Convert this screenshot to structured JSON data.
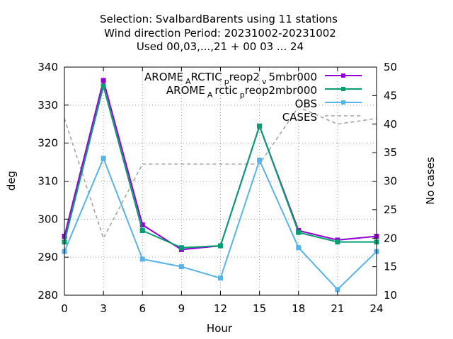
{
  "chart_data": {
    "type": "line",
    "title_lines": [
      "Selection: SvalbardBarents using    11 stations",
      "Wind direction   Period: 20231002-20231002",
      "Used  00,03,...,21  + 00 03 ... 24"
    ],
    "xlabel": "Hour",
    "ylabel": "deg",
    "y2label": "No cases",
    "x": [
      0,
      3,
      6,
      9,
      12,
      15,
      18,
      21,
      24
    ],
    "xlim": [
      0,
      24
    ],
    "ylim": [
      280,
      340
    ],
    "y2lim": [
      10,
      50
    ],
    "xticks": [
      "0",
      "3",
      "6",
      "9",
      "12",
      "15",
      "18",
      "21",
      "24"
    ],
    "yticks": [
      "280",
      "290",
      "300",
      "310",
      "320",
      "330",
      "340"
    ],
    "y2ticks": [
      "10",
      "15",
      "20",
      "25",
      "30",
      "35",
      "40",
      "45",
      "50"
    ],
    "grid": true,
    "legend_position": "top-right",
    "series": [
      {
        "name": "AROME_ARCTIC_preop2_v5mbr000",
        "name_parts": {
          "a": "AROME",
          "b": "A",
          "c": "RCTIC",
          "d": "p",
          "e": "reop2",
          "f": "v",
          "g": "5mbr000"
        },
        "color": "#9400d3",
        "axis": "y",
        "marker": "filled-square",
        "values": [
          295.5,
          336.5,
          298.5,
          292,
          293,
          324.5,
          297,
          294.5,
          295.5
        ]
      },
      {
        "name": "AROME_Arctic_preop2mbr000",
        "name_parts": {
          "a": "AROME",
          "b": "A",
          "c": "rctic",
          "d": "p",
          "e": "reop2mbr000"
        },
        "color": "#009e73",
        "axis": "y",
        "marker": "filled-square",
        "values": [
          294,
          335,
          297,
          292.5,
          293,
          324.5,
          296.5,
          294,
          294
        ]
      },
      {
        "name": "OBS",
        "color": "#56b4e9",
        "axis": "y",
        "marker": "filled-square",
        "values": [
          291.5,
          316,
          289.5,
          287.5,
          284.5,
          315.5,
          292.5,
          281.5,
          291.5
        ]
      },
      {
        "name": "CASES",
        "color": "#a0a0a0",
        "axis": "y2",
        "marker": "none",
        "dash": true,
        "values": [
          41,
          20,
          33,
          33,
          33,
          33,
          43,
          40,
          41
        ]
      }
    ]
  }
}
